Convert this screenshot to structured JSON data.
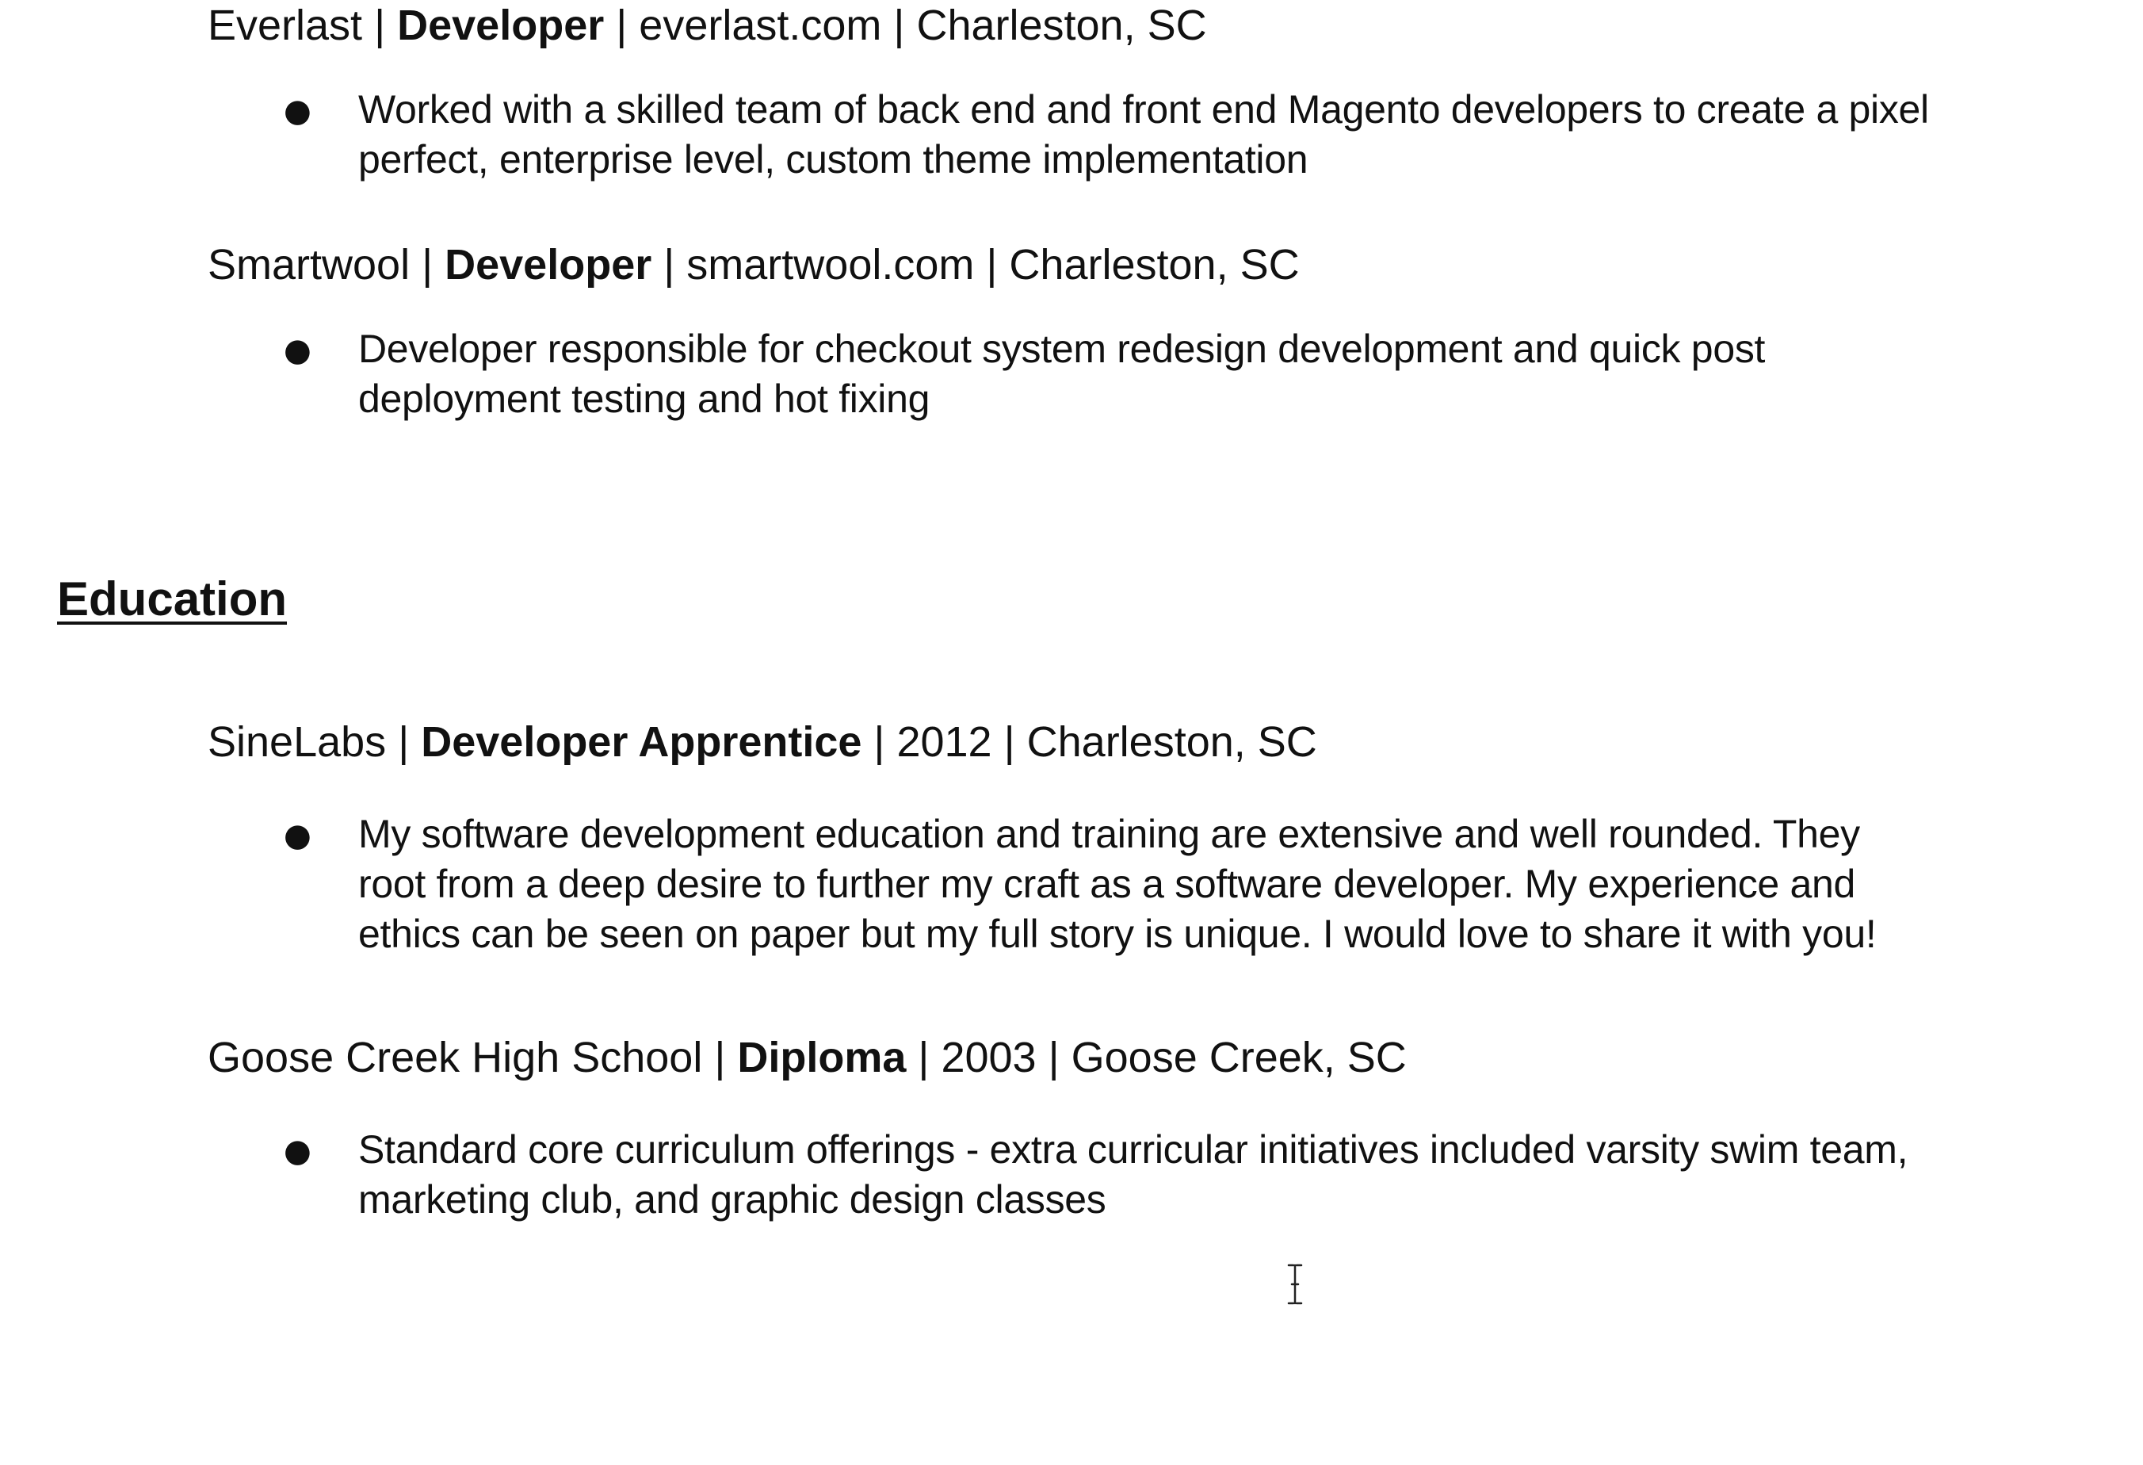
{
  "experience": [
    {
      "org": "Everlast",
      "role": "Developer",
      "site": "everlast.com",
      "location": "Charleston, SC",
      "bullet_lines": [
        "Worked with a skilled team of back end and front end Magento developers to create a pixel",
        "perfect, enterprise level, custom theme implementation"
      ]
    },
    {
      "org": "Smartwool",
      "role": "Developer",
      "site": "smartwool.com",
      "location": "Charleston, SC",
      "bullet_lines": [
        "Developer responsible for checkout system redesign development and quick post",
        "deployment testing and hot fixing"
      ]
    }
  ],
  "education_title": "Education",
  "education": [
    {
      "org": "SineLabs",
      "credential": "Developer Apprentice",
      "year": "2012",
      "location": "Charleston, SC",
      "bullet_lines": [
        "My software development education and training are extensive and well rounded.  They",
        "root from a deep desire to further my craft as a software developer.  My experience and",
        "ethics can be seen on paper but my full story is unique.  I would love to share it with you!"
      ]
    },
    {
      "org": "Goose Creek High School",
      "credential": "Diploma",
      "year": "2003",
      "location": "Goose Creek, SC",
      "bullet_lines": [
        "Standard core curriculum offerings - extra curricular initiatives included varsity swim team,",
        "marketing club, and graphic design classes"
      ]
    }
  ],
  "separator": " | ",
  "bullet_glyph": "●",
  "cursor_icon": "text-cursor-icon"
}
